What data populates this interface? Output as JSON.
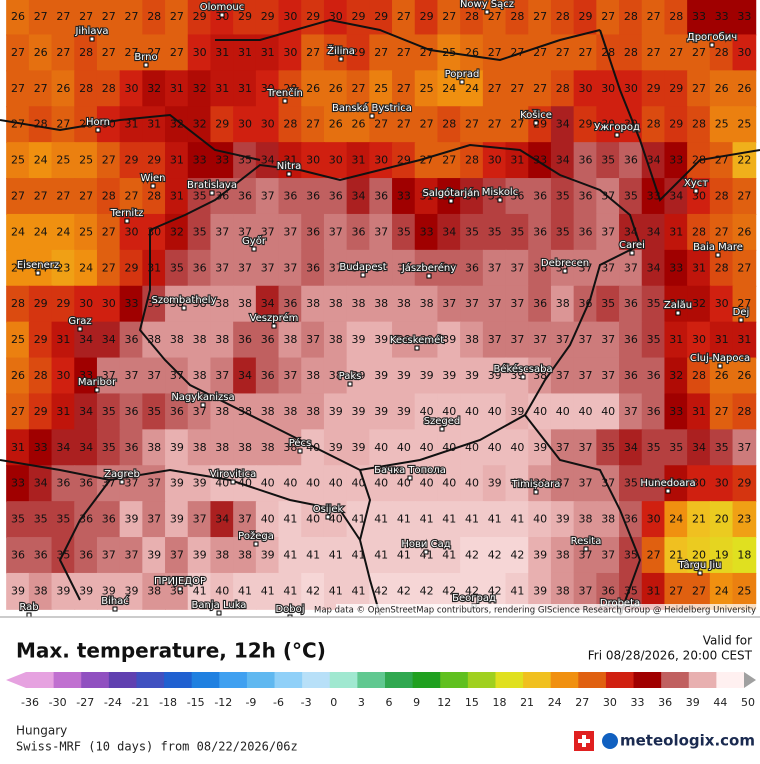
{
  "map": {
    "grid": [
      [
        26,
        27,
        27,
        27,
        27,
        27,
        28,
        27,
        29,
        30,
        29,
        29,
        30,
        29,
        30,
        29,
        29,
        27,
        29,
        27,
        28,
        27,
        28,
        27,
        28,
        29,
        27,
        28,
        27,
        28,
        33,
        33,
        33
      ],
      [
        27,
        26,
        27,
        28,
        27,
        27,
        27,
        27,
        30,
        31,
        31,
        31,
        30,
        27,
        28,
        29,
        27,
        27,
        27,
        25,
        26,
        27,
        27,
        27,
        27,
        27,
        28,
        28,
        27,
        27,
        27,
        28,
        30
      ],
      [
        27,
        27,
        26,
        28,
        28,
        30,
        32,
        31,
        32,
        31,
        31,
        30,
        28,
        26,
        26,
        27,
        25,
        27,
        25,
        24,
        24,
        27,
        27,
        27,
        28,
        30,
        30,
        30,
        29,
        29,
        27,
        26,
        26
      ],
      [
        27,
        28,
        27,
        28,
        30,
        31,
        31,
        32,
        32,
        29,
        30,
        30,
        28,
        27,
        26,
        26,
        27,
        27,
        27,
        28,
        27,
        27,
        27,
        29,
        34,
        29,
        30,
        30,
        28,
        29,
        28,
        25,
        25
      ],
      [
        25,
        24,
        25,
        25,
        27,
        29,
        29,
        31,
        33,
        33,
        35,
        34,
        31,
        30,
        30,
        31,
        30,
        29,
        27,
        27,
        28,
        30,
        31,
        33,
        34,
        36,
        35,
        36,
        34,
        33,
        28,
        27,
        22
      ],
      [
        27,
        27,
        27,
        27,
        28,
        27,
        28,
        31,
        35,
        36,
        36,
        37,
        36,
        36,
        36,
        34,
        36,
        33,
        31,
        33,
        34,
        35,
        36,
        36,
        35,
        36,
        37,
        35,
        33,
        34,
        30,
        28,
        27
      ],
      [
        24,
        24,
        24,
        25,
        27,
        30,
        30,
        32,
        35,
        37,
        37,
        37,
        37,
        36,
        37,
        36,
        37,
        35,
        33,
        34,
        35,
        35,
        35,
        36,
        35,
        36,
        37,
        34,
        34,
        31,
        28,
        27,
        26
      ],
      [
        24,
        24,
        23,
        24,
        27,
        29,
        31,
        35,
        36,
        37,
        37,
        37,
        37,
        36,
        37,
        37,
        37,
        37,
        36,
        36,
        36,
        37,
        37,
        36,
        37,
        37,
        37,
        37,
        34,
        33,
        31,
        28,
        27
      ],
      [
        28,
        29,
        29,
        30,
        30,
        33,
        35,
        38,
        38,
        38,
        38,
        34,
        36,
        38,
        38,
        38,
        38,
        38,
        38,
        37,
        37,
        37,
        37,
        36,
        38,
        36,
        35,
        36,
        35,
        32,
        32,
        30,
        27
      ],
      [
        25,
        29,
        31,
        34,
        34,
        36,
        38,
        38,
        38,
        38,
        36,
        36,
        38,
        37,
        38,
        39,
        39,
        38,
        38,
        39,
        38,
        37,
        37,
        37,
        37,
        37,
        37,
        36,
        35,
        31,
        30,
        31,
        31
      ],
      [
        26,
        28,
        30,
        33,
        37,
        37,
        37,
        37,
        38,
        37,
        34,
        36,
        37,
        38,
        38,
        39,
        39,
        39,
        39,
        39,
        39,
        39,
        39,
        38,
        37,
        37,
        37,
        36,
        36,
        32,
        28,
        26,
        26
      ],
      [
        27,
        29,
        31,
        34,
        35,
        36,
        35,
        36,
        37,
        38,
        38,
        38,
        38,
        38,
        39,
        39,
        39,
        39,
        40,
        40,
        40,
        40,
        39,
        40,
        40,
        40,
        40,
        37,
        36,
        33,
        31,
        27,
        28
      ],
      [
        31,
        33,
        34,
        34,
        35,
        36,
        38,
        39,
        38,
        38,
        38,
        38,
        38,
        40,
        39,
        39,
        40,
        40,
        40,
        40,
        40,
        40,
        40,
        39,
        37,
        37,
        35,
        34,
        35,
        35,
        34,
        35,
        37
      ],
      [
        33,
        34,
        36,
        36,
        37,
        37,
        37,
        39,
        39,
        40,
        40,
        40,
        40,
        40,
        40,
        40,
        40,
        40,
        40,
        40,
        40,
        39,
        40,
        38,
        37,
        37,
        37,
        35,
        35,
        32,
        30,
        30,
        29
      ],
      [
        35,
        35,
        35,
        36,
        36,
        39,
        37,
        39,
        37,
        34,
        37,
        40,
        41,
        40,
        40,
        41,
        41,
        41,
        41,
        41,
        41,
        41,
        41,
        40,
        39,
        38,
        38,
        36,
        30,
        24,
        21,
        20,
        23
      ],
      [
        36,
        36,
        35,
        36,
        37,
        37,
        39,
        37,
        39,
        38,
        38,
        39,
        41,
        41,
        41,
        41,
        41,
        41,
        41,
        41,
        42,
        42,
        42,
        39,
        38,
        37,
        37,
        35,
        27,
        21,
        20,
        19,
        18
      ],
      [
        39,
        38,
        39,
        39,
        39,
        39,
        38,
        38,
        41,
        40,
        41,
        41,
        41,
        42,
        41,
        41,
        42,
        42,
        42,
        42,
        42,
        42,
        41,
        39,
        38,
        37,
        36,
        35,
        31,
        27,
        27,
        24,
        25
      ]
    ],
    "places": [
      "Olomouc",
      "Nowy Sącz",
      "Jihlava",
      "Brno",
      "Žilina",
      "Дрогобич",
      "Poprad",
      "Trenčín",
      "Banská Bystrica",
      "Košice",
      "Ужгород",
      "Horn",
      "Nitra",
      "Хуст",
      "Wien",
      "Bratislava",
      "Salgótarján",
      "Miskolc",
      "Ternitz",
      "Győr",
      "Carei",
      "Baia Mare",
      "Eisenerz",
      "Budapest",
      "Jászberény",
      "Debrecen",
      "Szombathely",
      "Zalău",
      "Graz",
      "Veszprém",
      "Kecskemét",
      "Dej",
      "Cluj-Napoca",
      "Békéscsaba",
      "Maribor",
      "Paks",
      "Nagykanizsa",
      "Szeged",
      "Pécs",
      "Бачка Топола",
      "Zagreb",
      "Virovitica",
      "Timișoara",
      "Hunedoara",
      "Osijek",
      "Požega",
      "Нови Сад",
      "Resita",
      "Târgu Jiu",
      "ПРИЈЕДОР",
      "Bihać",
      "Banja Luka",
      "Doboj",
      "Београд",
      "Rab",
      "Drobeta"
    ],
    "attribution": "Map data © OpenStreetMap contributors, rendering GIScience Research Group @ Heidelberg University"
  },
  "legend": {
    "title": "Max. temperature, 12h (°C)",
    "ticks": [
      -36,
      -30,
      -27,
      -24,
      -21,
      -18,
      -15,
      -12,
      -9,
      -6,
      -3,
      0,
      3,
      6,
      9,
      12,
      15,
      18,
      21,
      24,
      27,
      30,
      33,
      36,
      39,
      44,
      50
    ],
    "colors": [
      "#e6a2e0",
      "#c070d0",
      "#9050c0",
      "#6040b0",
      "#4050c0",
      "#2060d0",
      "#2080e0",
      "#40a0f0",
      "#60b8f0",
      "#90d0f8",
      "#b8e0f8",
      "#a0e8d0",
      "#60c890",
      "#30a850",
      "#20a020",
      "#60c020",
      "#a0d020",
      "#e0e020",
      "#f0c020",
      "#f09010",
      "#e06010",
      "#d02010",
      "#a00000",
      "#c06060",
      "#e8b0b0",
      "#fff0f0",
      "#a0a0a0"
    ]
  },
  "footer": {
    "valid_label": "Valid for",
    "valid_time": "Fri 08/28/2026, 20:00 CEST",
    "region": "Hungary",
    "model": "Swiss-MRF (10 days) from 08/22/2026/06z",
    "brand": "meteologix.com"
  }
}
